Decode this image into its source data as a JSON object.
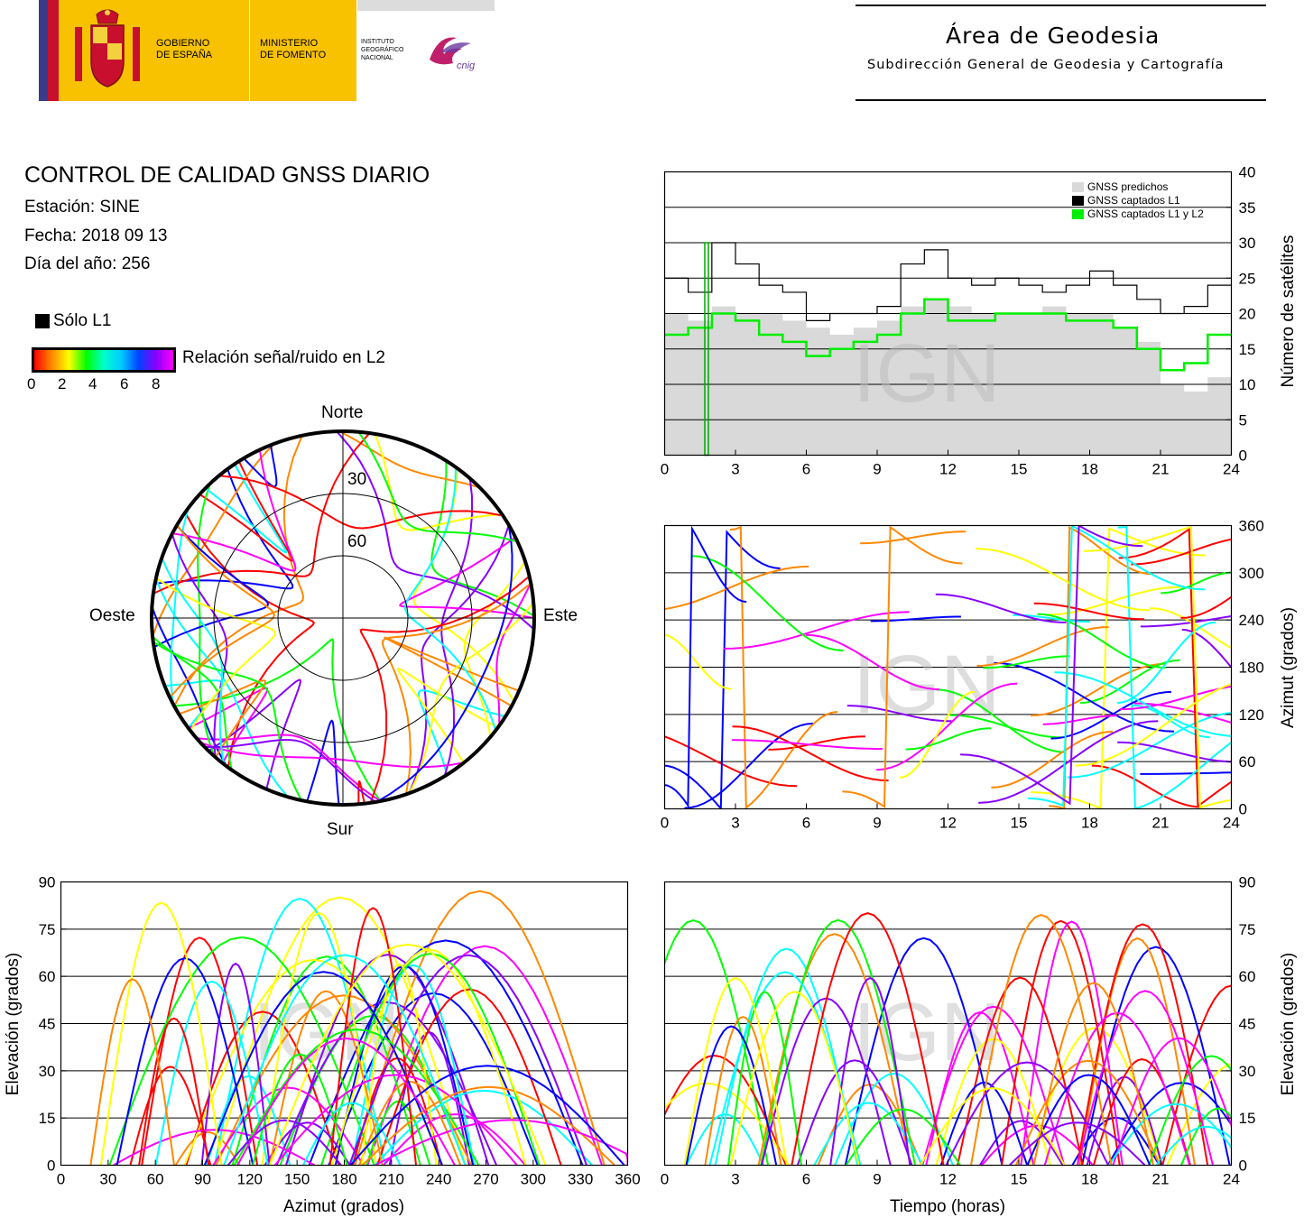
{
  "header": {
    "gov_line1": "GOBIERNO",
    "gov_line2": "DE ESPAÑA",
    "min_line1": "MINISTERIO",
    "min_line2": "DE FOMENTO",
    "ign_line1": "INSTITUTO",
    "ign_line2": "GEOGRÁFICO",
    "ign_line3": "NACIONAL",
    "cnig_logo": "cnig",
    "area_title": "Área de Geodesia",
    "area_subtitle": "Subdirección General de Geodesia y Cartografía",
    "colors": {
      "red": "#c8102e",
      "yellow": "#f8c200"
    }
  },
  "info": {
    "title": "CONTROL DE CALIDAD GNSS DIARIO",
    "station": "Estación: SINE",
    "date": "Fecha: 2018 09 13",
    "doy": "Día del año: 256"
  },
  "legend": {
    "only_l1": "Sólo L1",
    "snr_label": "Relación señal/ruido en L2",
    "snr_ticks": [
      "0",
      "2",
      "4",
      "6",
      "8"
    ],
    "colors": [
      "#ff0000",
      "#ff8800",
      "#ffff00",
      "#00ff00",
      "#00ffff",
      "#0000ff",
      "#8800ff",
      "#ff00ff"
    ]
  },
  "watermark": "IGN",
  "chart_data": [
    {
      "type": "polar-skyplot",
      "labels": {
        "north": "Norte",
        "south": "Sur",
        "east": "Este",
        "west": "Oeste"
      },
      "rings": [
        "30",
        "60"
      ]
    },
    {
      "type": "area",
      "xlabel": "",
      "ylabel": "Número de satélites",
      "xlim": [
        0,
        24
      ],
      "ylim": [
        0,
        40
      ],
      "xticks": [
        "0",
        "3",
        "6",
        "9",
        "12",
        "15",
        "18",
        "21",
        "24"
      ],
      "yticks": [
        "0",
        "5",
        "10",
        "15",
        "20",
        "25",
        "30",
        "35",
        "40"
      ],
      "legend": [
        "GNSS predichos",
        "GNSS captados L1",
        "GNSS captados L1 y L2"
      ],
      "series": [
        {
          "name": "GNSS predichos",
          "color": "#d9d9d9",
          "x": [
            0,
            1,
            2,
            3,
            4,
            5,
            6,
            7,
            8,
            9,
            10,
            11,
            12,
            13,
            14,
            15,
            16,
            17,
            18,
            19,
            20,
            21,
            22,
            23,
            24
          ],
          "values": [
            20,
            19,
            21,
            20,
            20,
            19,
            18,
            17,
            18,
            19,
            21,
            22,
            21,
            20,
            20,
            20,
            21,
            20,
            20,
            18,
            16,
            10,
            9,
            11,
            11
          ]
        },
        {
          "name": "GNSS captados L1",
          "color": "#000000",
          "x": [
            0,
            1,
            2,
            3,
            4,
            5,
            6,
            7,
            8,
            9,
            10,
            11,
            12,
            13,
            14,
            15,
            16,
            17,
            18,
            19,
            20,
            21,
            22,
            23,
            24
          ],
          "values": [
            25,
            23,
            30,
            27,
            24,
            23,
            19,
            20,
            20,
            21,
            27,
            29,
            25,
            24,
            25,
            24,
            23,
            24,
            26,
            24,
            22,
            20,
            21,
            24,
            24
          ]
        },
        {
          "name": "GNSS captados L1 y L2",
          "color": "#00ee00",
          "x": [
            0,
            1,
            2,
            3,
            4,
            5,
            6,
            7,
            8,
            9,
            10,
            11,
            12,
            13,
            14,
            15,
            16,
            17,
            18,
            19,
            20,
            21,
            22,
            23,
            24
          ],
          "values": [
            17,
            18,
            20,
            19,
            17,
            16,
            14,
            15,
            16,
            17,
            20,
            22,
            19,
            19,
            20,
            20,
            20,
            19,
            19,
            18,
            15,
            12,
            13,
            17,
            17
          ]
        }
      ]
    },
    {
      "type": "scatter",
      "xlabel": "",
      "ylabel": "Azimut (grados)",
      "xlim": [
        0,
        24
      ],
      "ylim": [
        0,
        360
      ],
      "xticks": [
        "0",
        "3",
        "6",
        "9",
        "12",
        "15",
        "18",
        "21",
        "24"
      ],
      "yticks": [
        "0",
        "60",
        "120",
        "180",
        "240",
        "300",
        "360"
      ]
    },
    {
      "type": "scatter",
      "xlabel": "Azimut (grados)",
      "ylabel": "Elevación (grados)",
      "xlim": [
        0,
        360
      ],
      "ylim": [
        0,
        90
      ],
      "xticks": [
        "0",
        "30",
        "60",
        "90",
        "120",
        "150",
        "180",
        "210",
        "240",
        "270",
        "300",
        "330",
        "360"
      ],
      "yticks": [
        "0",
        "15",
        "30",
        "45",
        "60",
        "75",
        "90"
      ]
    },
    {
      "type": "scatter",
      "xlabel": "Tiempo (horas)",
      "ylabel": "Elevación (grados)",
      "xlim": [
        0,
        24
      ],
      "ylim": [
        0,
        90
      ],
      "xticks": [
        "0",
        "3",
        "6",
        "9",
        "12",
        "15",
        "18",
        "21",
        "24"
      ],
      "yticks": [
        "0",
        "15",
        "30",
        "45",
        "60",
        "75",
        "90"
      ]
    }
  ]
}
